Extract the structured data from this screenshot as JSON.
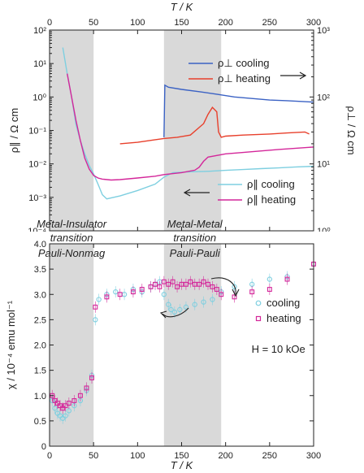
{
  "chart_data": [
    {
      "type": "line",
      "xlabel": "T / K",
      "ylabel_left": "ρ∥ / Ω cm",
      "ylabel_right": "ρ⊥ / Ω cm",
      "xlim": [
        0,
        300
      ],
      "ylim_left": [
        0.0001,
        100
      ],
      "ylim_right": [
        1,
        1000
      ],
      "yscale": "log",
      "x_ticks": [
        "0",
        "50",
        "100",
        "150",
        "200",
        "250",
        "300"
      ],
      "y_left_ticks": [
        "10⁻⁴",
        "10⁻³",
        "10⁻²",
        "10⁻¹",
        "10⁰",
        "10¹",
        "10²"
      ],
      "y_right_ticks": [
        "10⁰",
        "10¹",
        "10²",
        "10³"
      ],
      "shaded_regions": [
        [
          0,
          50
        ],
        [
          130,
          195
        ]
      ],
      "annotations": [
        {
          "text": "Metal-Insulator",
          "x": 25
        },
        {
          "text": "transition",
          "x": 25
        },
        {
          "text": "Metal-Metal",
          "x": 165
        },
        {
          "text": "transition",
          "x": 165
        }
      ],
      "legend": "right",
      "arrow_left_label": "left axis",
      "arrow_right_label": "right axis",
      "series": [
        {
          "name": "ρ⊥ cooling",
          "axis": "right",
          "color": "#3b62c4",
          "x": [
            130,
            131,
            135,
            150,
            170,
            190,
            210,
            230,
            250,
            270,
            290,
            300
          ],
          "y": [
            25,
            150,
            140,
            130,
            120,
            110,
            100,
            95,
            90,
            88,
            85,
            84
          ]
        },
        {
          "name": "ρ⊥ heating",
          "axis": "right",
          "color": "#e8402c",
          "x": [
            80,
            100,
            120,
            130,
            145,
            160,
            175,
            180,
            185,
            190,
            192,
            195,
            200,
            220,
            250,
            270,
            290,
            295
          ],
          "y": [
            20,
            21,
            23,
            24,
            25,
            27,
            40,
            55,
            70,
            60,
            30,
            25,
            26,
            27,
            28,
            29,
            30,
            28
          ]
        },
        {
          "name": "ρ∥ cooling",
          "axis": "left",
          "color": "#7ecfe0",
          "x": [
            15,
            20,
            25,
            30,
            35,
            40,
            45,
            50,
            55,
            60,
            65,
            80,
            100,
            120,
            130,
            140,
            160,
            180,
            200,
            220,
            240,
            260,
            280,
            300
          ],
          "y": [
            30,
            5,
            1,
            0.15,
            0.05,
            0.02,
            0.009,
            0.005,
            0.0025,
            0.0012,
            0.0009,
            0.0011,
            0.0016,
            0.0025,
            0.004,
            0.0055,
            0.0058,
            0.006,
            0.0064,
            0.0068,
            0.0072,
            0.0076,
            0.0081,
            0.0085
          ]
        },
        {
          "name": "ρ∥ heating",
          "axis": "left",
          "color": "#d4279a",
          "x": [
            20,
            25,
            30,
            35,
            40,
            45,
            50,
            55,
            60,
            70,
            80,
            100,
            120,
            130,
            150,
            165,
            170,
            175,
            180,
            200,
            220,
            260,
            300
          ],
          "y": [
            5,
            1,
            0.2,
            0.05,
            0.015,
            0.007,
            0.0045,
            0.0038,
            0.0035,
            0.0033,
            0.0034,
            0.0038,
            0.0043,
            0.0048,
            0.0055,
            0.0065,
            0.008,
            0.012,
            0.016,
            0.02,
            0.022,
            0.027,
            0.032
          ]
        }
      ]
    },
    {
      "type": "scatter",
      "xlabel": "T / K",
      "ylabel": "χ / 10⁻⁴ emu mol⁻¹",
      "xlim": [
        0,
        300
      ],
      "ylim": [
        0,
        4.0
      ],
      "y_ticks": [
        "0",
        "0.5",
        "1.0",
        "1.5",
        "2.0",
        "2.5",
        "3.0",
        "3.5",
        "4.0"
      ],
      "x_ticks": [
        "0",
        "50",
        "100",
        "150",
        "200",
        "250",
        "300"
      ],
      "shaded_regions": [
        [
          0,
          50
        ],
        [
          130,
          195
        ]
      ],
      "annotations": [
        {
          "text": "Pauli-Nonmag",
          "x": 25
        },
        {
          "text": "Pauli-Pauli",
          "x": 165
        },
        {
          "text": "H = 10 kOe",
          "x": 260
        }
      ],
      "legend": "right",
      "series": [
        {
          "name": "cooling",
          "marker": "circle",
          "color": "#7ecfe0",
          "x": [
            3,
            6,
            9,
            12,
            15,
            18,
            22,
            28,
            35,
            42,
            48,
            52,
            56,
            65,
            75,
            85,
            95,
            105,
            115,
            120,
            125,
            130,
            135,
            138,
            142,
            148,
            155,
            165,
            175,
            185,
            195,
            210,
            230,
            250,
            270,
            300
          ],
          "y": [
            0.9,
            0.75,
            0.65,
            0.6,
            0.55,
            0.6,
            0.7,
            0.8,
            0.9,
            1.1,
            1.4,
            2.5,
            2.9,
            3.0,
            3.05,
            3.0,
            3.1,
            3.05,
            3.15,
            3.2,
            3.25,
            3.0,
            2.8,
            2.7,
            2.65,
            2.7,
            2.75,
            2.8,
            2.85,
            2.9,
            3.05,
            3.15,
            3.2,
            3.3,
            3.35,
            3.6
          ]
        },
        {
          "name": "heating",
          "marker": "square",
          "color": "#d4279a",
          "x": [
            3,
            6,
            9,
            12,
            15,
            18,
            22,
            28,
            35,
            42,
            48,
            52,
            65,
            80,
            95,
            105,
            115,
            120,
            125,
            130,
            135,
            140,
            145,
            150,
            155,
            160,
            165,
            170,
            175,
            180,
            185,
            190,
            195,
            210,
            230,
            250,
            270,
            300
          ],
          "y": [
            1.0,
            0.9,
            0.85,
            0.8,
            0.75,
            0.8,
            0.85,
            0.9,
            1.0,
            1.15,
            1.35,
            2.75,
            2.95,
            3.0,
            3.05,
            3.1,
            3.15,
            3.2,
            3.15,
            3.25,
            3.2,
            3.25,
            3.15,
            3.2,
            3.2,
            3.25,
            3.2,
            3.2,
            3.25,
            3.2,
            3.15,
            3.1,
            3.0,
            2.95,
            3.05,
            3.1,
            3.3,
            3.6
          ]
        }
      ]
    }
  ]
}
